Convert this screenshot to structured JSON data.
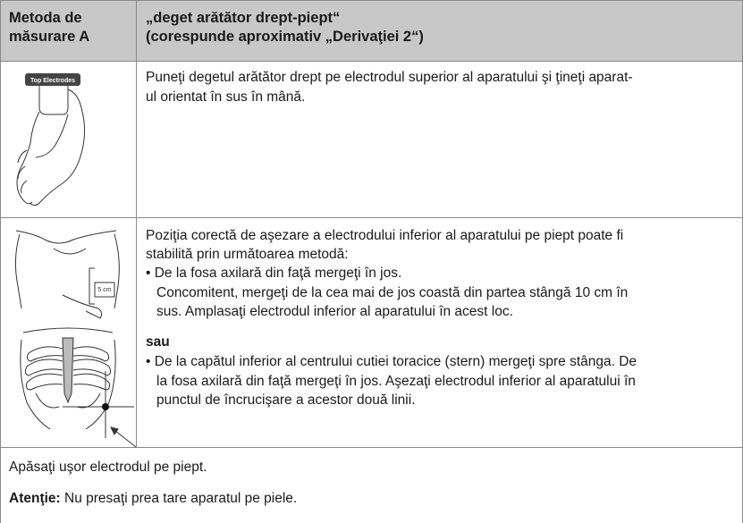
{
  "header": {
    "method": [
      "Metoda de",
      "măsurare A"
    ],
    "title": [
      "„deget arătător drept-piept“",
      "(corespunde aproximativ „Derivaţiei 2“)"
    ]
  },
  "rows": [
    {
      "figure_label": "Top Electrodes",
      "lines": [
        "Puneţi degetul arătător drept pe electrodul superior al aparatului şi ţineţi aparat-",
        "ul orientat în sus în mână."
      ]
    },
    {
      "figure_label": "5 cm",
      "intro": [
        "Poziţia corectă de aşezare a electrodului inferior al aparatului pe piept poate fi",
        "stabilită prin următoarea metodă:"
      ],
      "bullet1": [
        "• De la fosa axilară din faţă mergeţi în jos.",
        "Concomitent, mergeţi de la cea mai de jos coastă din partea stângă 10 cm în",
        "sus. Amplasaţi electrodul inferior al aparatului în acest loc."
      ],
      "or": "sau",
      "bullet2": [
        "• De la capătul inferior al centrului cutiei toracice (stern) mergeţi spre stânga. De",
        "la fosa axilară din faţă mergeţi în jos. Aşezaţi electrodul inferior al aparatului în",
        "punctul de încrucişare a acestor două linii."
      ]
    }
  ],
  "footer": {
    "note": "Apăsaţi uşor electrodul pe piept.",
    "warning_label": "Atenţie:",
    "warning": "Nu presaţi prea tare aparatul pe piele."
  }
}
